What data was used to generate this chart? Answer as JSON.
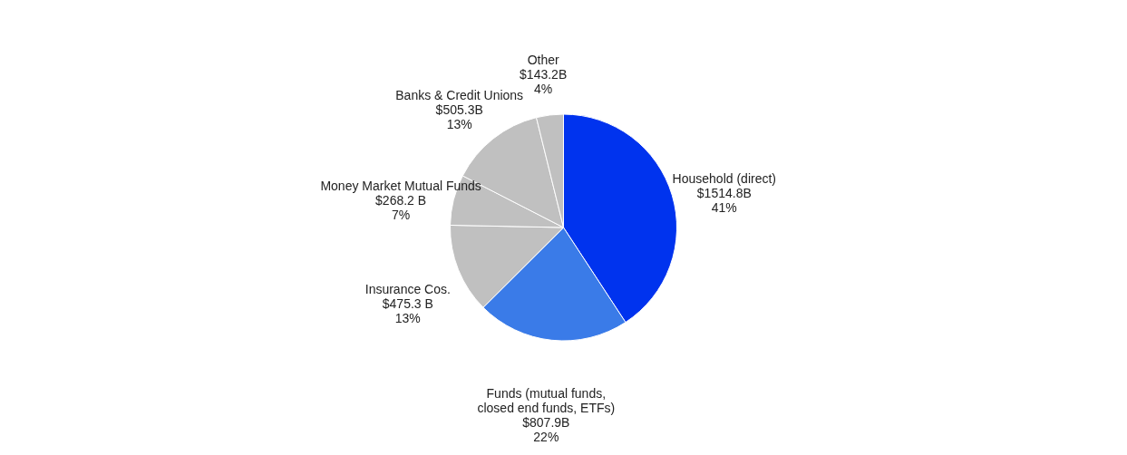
{
  "chart_data": {
    "type": "pie",
    "categories": [
      "Household (direct)",
      "Funds (mutual funds,\nclosed end funds, ETFs)",
      "Insurance Cos.",
      "Money Market Mutual Funds",
      "Banks & Credit Unions",
      "Other"
    ],
    "values": [
      1514.8,
      807.9,
      475.3,
      268.2,
      505.3,
      143.2
    ],
    "value_labels": [
      "$1514.8B",
      "$807.9B",
      "$475.3 B",
      "$268.2 B",
      "$505.3B",
      "$143.2B"
    ],
    "annotations": [
      "41%",
      "22%",
      "13%",
      "7%",
      "13%",
      "4%"
    ],
    "colors": [
      "#0033ee",
      "#3a7be8",
      "#c0c0c0",
      "#c0c0c0",
      "#c0c0c0",
      "#c0c0c0"
    ],
    "legend": false
  }
}
